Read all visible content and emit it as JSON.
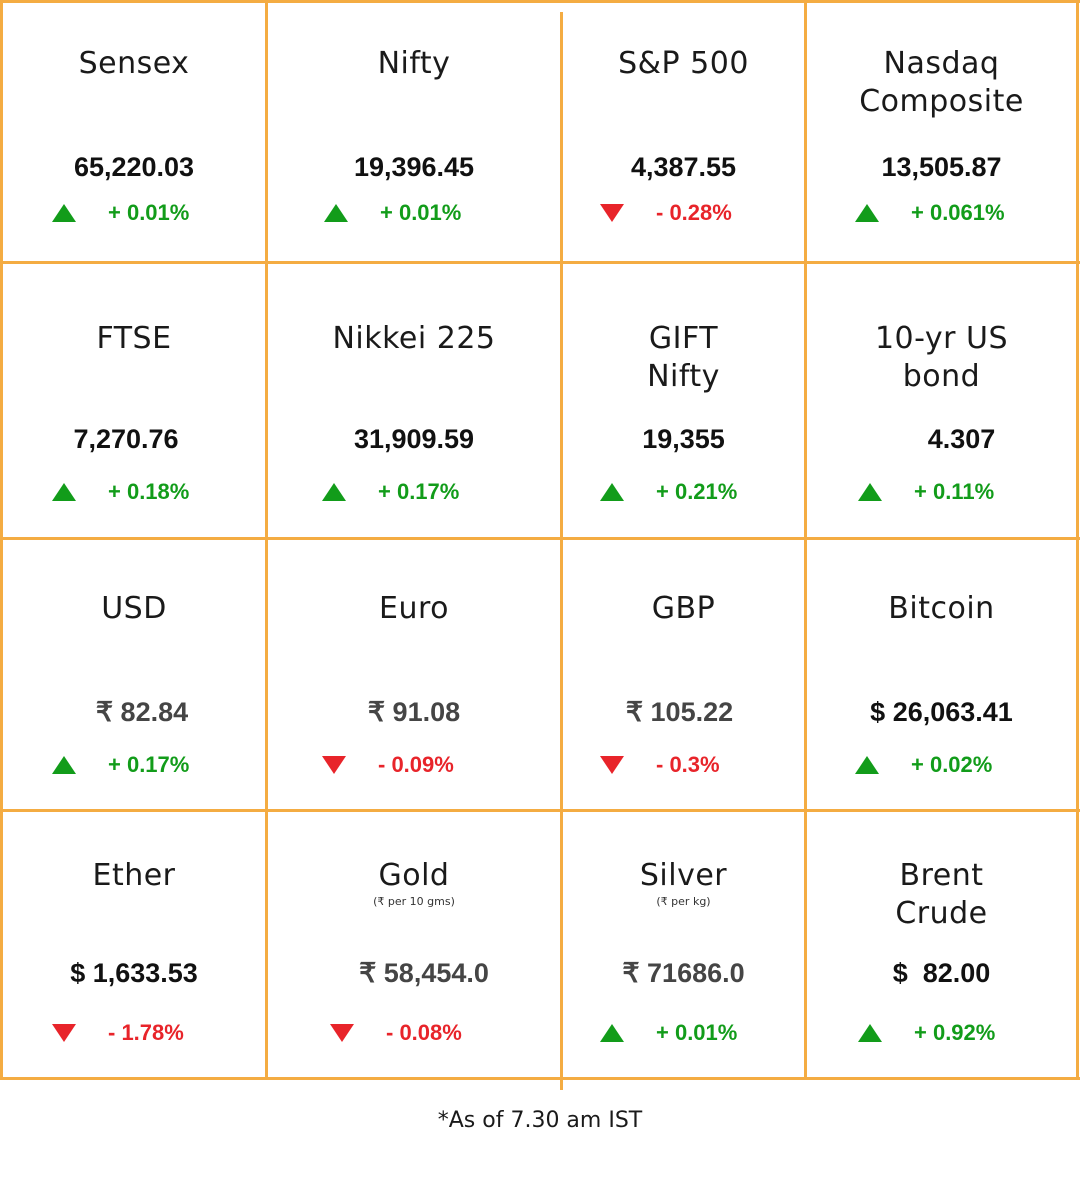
{
  "tiles": [
    {
      "name": "Sensex",
      "sub": "",
      "value": "65,220.03",
      "dir": "up",
      "change": "+ 0.01%"
    },
    {
      "name": "Nifty",
      "sub": "",
      "value": "19,396.45",
      "dir": "up",
      "change": "+ 0.01%"
    },
    {
      "name": "S&P 500",
      "sub": "",
      "value": "4,387.55",
      "dir": "down",
      "change": "- 0.28%"
    },
    {
      "name": "Nasdaq\nComposite",
      "sub": "",
      "value": "13,505.87",
      "dir": "up",
      "change": "+ 0.061%"
    },
    {
      "name": "FTSE",
      "sub": "",
      "value": "7,270.76",
      "dir": "up",
      "change": "+ 0.18%"
    },
    {
      "name": "Nikkei 225",
      "sub": "",
      "value": "31,909.59",
      "dir": "up",
      "change": "+ 0.17%"
    },
    {
      "name": "GIFT\nNifty",
      "sub": "",
      "value": "19,355",
      "dir": "up",
      "change": "+ 0.21%"
    },
    {
      "name": "10-yr US\nbond",
      "sub": "",
      "value": "4.307",
      "dir": "up",
      "change": "+ 0.11%"
    },
    {
      "name": "USD",
      "sub": "",
      "value": "₹ 82.84",
      "dir": "up",
      "change": "+ 0.17%"
    },
    {
      "name": "Euro",
      "sub": "",
      "value": "₹ 91.08",
      "dir": "down",
      "change": "- 0.09%"
    },
    {
      "name": "GBP",
      "sub": "",
      "value": "₹ 105.22",
      "dir": "down",
      "change": "- 0.3%"
    },
    {
      "name": "Bitcoin",
      "sub": "",
      "value": "$ 26,063.41",
      "dir": "up",
      "change": "+ 0.02%"
    },
    {
      "name": "Ether",
      "sub": "",
      "value": "$ 1,633.53",
      "dir": "down",
      "change": "- 1.78%"
    },
    {
      "name": "Gold",
      "sub": "(₹ per 10 gms)",
      "value": "₹ 58,454.0",
      "dir": "down",
      "change": "- 0.08%"
    },
    {
      "name": "Silver",
      "sub": "(₹ per kg)",
      "value": "₹ 71686.0",
      "dir": "up",
      "change": "+ 0.01%"
    },
    {
      "name": "Brent\nCrude",
      "sub": "",
      "value": "$  82.00",
      "dir": "up",
      "change": "+ 0.92%"
    }
  ],
  "footnote": "*As of 7.30 am IST",
  "colors": {
    "border": "#f4ac42",
    "up": "#129c1a",
    "down": "#e8242a"
  },
  "icons": {
    "up": "triangle-up-icon",
    "down": "triangle-down-icon"
  }
}
